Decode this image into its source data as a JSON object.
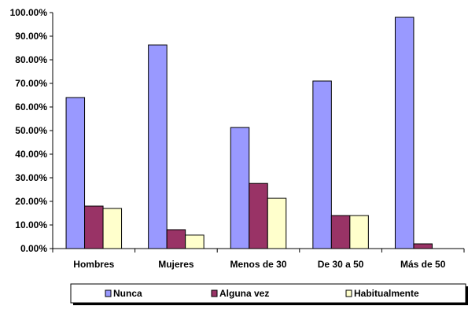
{
  "chart_data": {
    "type": "bar",
    "categories": [
      "Hombres",
      "Mujeres",
      "Menos de 30",
      "De 30 a 50",
      "Más de 50"
    ],
    "series": [
      {
        "name": "Nunca",
        "color": "#9999ff",
        "values": [
          64.0,
          86.3,
          51.3,
          71.0,
          98.0
        ]
      },
      {
        "name": "Alguna vez",
        "color": "#993366",
        "values": [
          18.0,
          8.0,
          27.6,
          14.0,
          2.0
        ]
      },
      {
        "name": "Habitualmente",
        "color": "#ffffcc",
        "values": [
          17.0,
          5.7,
          21.3,
          14.0,
          0.0
        ]
      }
    ],
    "ylim": [
      0,
      100
    ],
    "yticks": [
      "0.00%",
      "10.00%",
      "20.00%",
      "30.00%",
      "40.00%",
      "50.00%",
      "60.00%",
      "70.00%",
      "80.00%",
      "90.00%",
      "100.00%"
    ],
    "legend_position": "bottom",
    "grid": false
  }
}
